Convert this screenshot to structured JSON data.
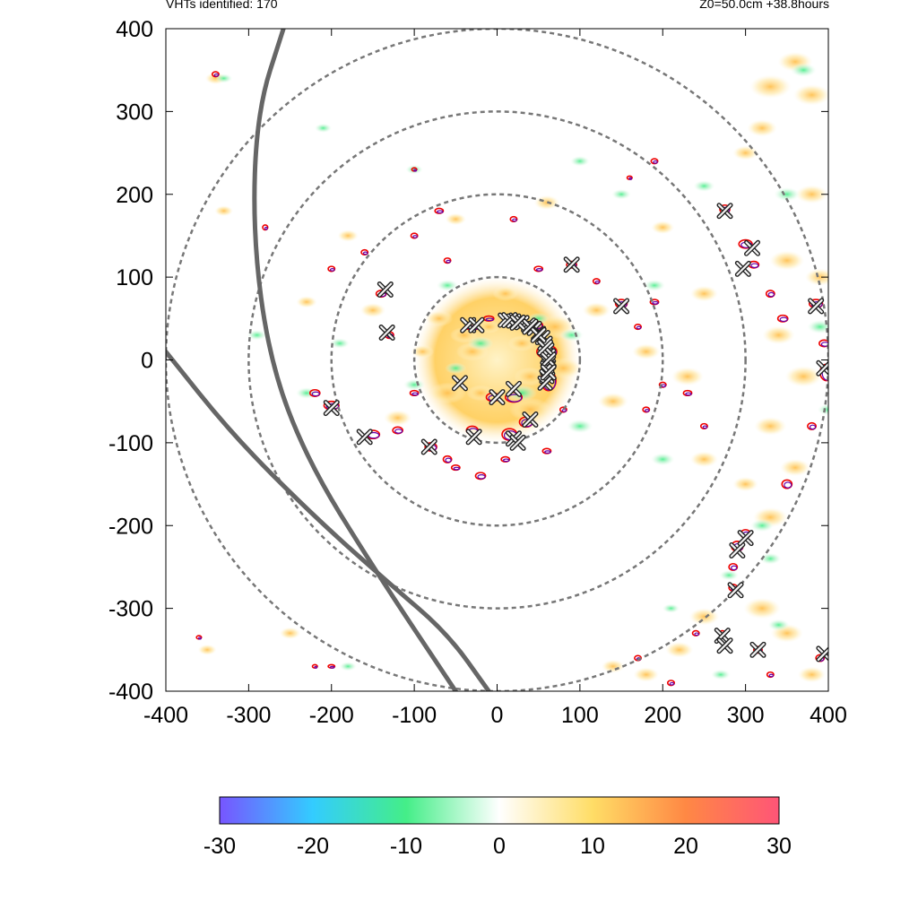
{
  "header": {
    "left_text": "VHTs identified: 170",
    "right_text": "Z0=50.0cm  +38.8hours"
  },
  "colors": {
    "positive_strong": "#ff5577",
    "positive_mid": "#ffcc44",
    "positive_weak": "#fff2c0",
    "negative_weak": "#c8f5d8",
    "negative_mid": "#44ee88",
    "negative_strong": "#7755ff",
    "contour_red": "#ee0000",
    "contour_purple": "#6600aa",
    "ring_color": "#777777",
    "track_color": "#666666"
  },
  "chart_data": {
    "type": "heatmap",
    "title": "",
    "xlabel": "",
    "ylabel": "",
    "xlim": [
      -400,
      400
    ],
    "ylim": [
      -400,
      400
    ],
    "x_ticks": [
      -400,
      -300,
      -200,
      -100,
      0,
      100,
      200,
      300,
      400
    ],
    "y_ticks": [
      400,
      300,
      200,
      100,
      0,
      -100,
      -200,
      -300,
      -400
    ],
    "range_rings": [
      100,
      200,
      300,
      400
    ],
    "colorbar": {
      "min": -30,
      "max": 30,
      "ticks": [
        -30,
        -20,
        -10,
        0,
        10,
        20,
        30
      ],
      "stops": [
        "#7755ff",
        "#33ccff",
        "#44ee88",
        "#ffffff",
        "#ffdd66",
        "#ff8844",
        "#ff5577"
      ]
    },
    "tracks": [
      {
        "points": [
          [
            -258,
            400
          ],
          [
            -290,
            300
          ],
          [
            -295,
            150
          ],
          [
            -275,
            0
          ],
          [
            -230,
            -120
          ],
          [
            -150,
            -250
          ],
          [
            -50,
            -400
          ]
        ]
      },
      {
        "points": [
          [
            -400,
            10
          ],
          [
            -320,
            -90
          ],
          [
            -220,
            -190
          ],
          [
            -130,
            -270
          ],
          [
            -60,
            -330
          ],
          [
            -10,
            -400
          ]
        ]
      }
    ],
    "vht_markers": [
      [
        -135,
        85
      ],
      [
        -133,
        33
      ],
      [
        -200,
        -58
      ],
      [
        -160,
        -93
      ],
      [
        -82,
        -105
      ],
      [
        -28,
        -93
      ],
      [
        -45,
        -28
      ],
      [
        -35,
        42
      ],
      [
        -25,
        42
      ],
      [
        15,
        48
      ],
      [
        25,
        45
      ],
      [
        40,
        40
      ],
      [
        50,
        30
      ],
      [
        58,
        15
      ],
      [
        62,
        0
      ],
      [
        62,
        -15
      ],
      [
        0,
        -45
      ],
      [
        20,
        -35
      ],
      [
        40,
        -72
      ],
      [
        20,
        -95
      ],
      [
        25,
        -100
      ],
      [
        90,
        115
      ],
      [
        150,
        65
      ],
      [
        275,
        180
      ],
      [
        308,
        135
      ],
      [
        297,
        110
      ],
      [
        385,
        65
      ],
      [
        395,
        -10
      ],
      [
        290,
        -230
      ],
      [
        300,
        -215
      ],
      [
        288,
        -278
      ],
      [
        272,
        -333
      ],
      [
        275,
        -345
      ],
      [
        315,
        -350
      ],
      [
        395,
        -355
      ]
    ],
    "core_arc_markers": [
      [
        10,
        48
      ],
      [
        20,
        47
      ],
      [
        30,
        45
      ],
      [
        38,
        42
      ],
      [
        45,
        38
      ],
      [
        50,
        32
      ],
      [
        55,
        27
      ],
      [
        58,
        20
      ],
      [
        60,
        12
      ],
      [
        62,
        5
      ],
      [
        62,
        -3
      ],
      [
        61,
        -10
      ],
      [
        60,
        -20
      ],
      [
        58,
        -28
      ]
    ],
    "core_field": {
      "center": [
        0,
        0
      ],
      "radius": 100,
      "value": 14
    },
    "positive_blobs": [
      [
        -40,
        30,
        12
      ],
      [
        -30,
        10,
        14
      ],
      [
        -10,
        40,
        10
      ],
      [
        30,
        20,
        12
      ],
      [
        40,
        -20,
        14
      ],
      [
        -20,
        -40,
        12
      ],
      [
        70,
        40,
        18
      ],
      [
        80,
        -10,
        16
      ],
      [
        -60,
        -40,
        16
      ],
      [
        40,
        -60,
        18
      ],
      [
        -70,
        50,
        12
      ],
      [
        10,
        80,
        11
      ],
      [
        -90,
        10,
        10
      ],
      [
        120,
        60,
        12
      ],
      [
        140,
        -50,
        13
      ],
      [
        -120,
        -70,
        12
      ],
      [
        -150,
        60,
        11
      ],
      [
        180,
        10,
        12
      ],
      [
        230,
        -20,
        14
      ],
      [
        250,
        80,
        12
      ],
      [
        -180,
        150,
        9
      ],
      [
        200,
        160,
        10
      ],
      [
        60,
        190,
        11
      ],
      [
        -50,
        170,
        9
      ],
      [
        330,
        330,
        18
      ],
      [
        360,
        360,
        15
      ],
      [
        380,
        320,
        16
      ],
      [
        320,
        280,
        13
      ],
      [
        300,
        250,
        11
      ],
      [
        380,
        200,
        14
      ],
      [
        350,
        120,
        15
      ],
      [
        390,
        100,
        13
      ],
      [
        340,
        30,
        14
      ],
      [
        370,
        -20,
        16
      ],
      [
        330,
        -80,
        14
      ],
      [
        360,
        -130,
        13
      ],
      [
        330,
        -190,
        15
      ],
      [
        300,
        -150,
        11
      ],
      [
        250,
        -120,
        12
      ],
      [
        320,
        -300,
        16
      ],
      [
        350,
        -330,
        14
      ],
      [
        380,
        -380,
        12
      ],
      [
        250,
        -310,
        13
      ],
      [
        220,
        -350,
        12
      ],
      [
        180,
        -380,
        11
      ],
      [
        140,
        -370,
        10
      ],
      [
        -230,
        70,
        9
      ],
      [
        -330,
        180,
        8
      ],
      [
        -340,
        340,
        9
      ],
      [
        -350,
        -350,
        8
      ],
      [
        -250,
        -330,
        9
      ]
    ],
    "negative_blobs": [
      [
        -20,
        20,
        12
      ],
      [
        30,
        -40,
        14
      ],
      [
        50,
        50,
        10
      ],
      [
        -50,
        -10,
        10
      ],
      [
        90,
        30,
        11
      ],
      [
        -100,
        -30,
        10
      ],
      [
        100,
        -80,
        12
      ],
      [
        -60,
        90,
        10
      ],
      [
        190,
        90,
        10
      ],
      [
        200,
        -120,
        11
      ],
      [
        -190,
        20,
        9
      ],
      [
        -230,
        -40,
        10
      ],
      [
        -290,
        30,
        9
      ],
      [
        370,
        350,
        12
      ],
      [
        350,
        200,
        12
      ],
      [
        390,
        40,
        12
      ],
      [
        400,
        -60,
        10
      ],
      [
        320,
        -200,
        11
      ],
      [
        330,
        -240,
        10
      ],
      [
        280,
        -260,
        9
      ],
      [
        340,
        -320,
        10
      ],
      [
        270,
        -380,
        9
      ],
      [
        210,
        -300,
        8
      ],
      [
        -330,
        340,
        8
      ],
      [
        -180,
        -370,
        8
      ],
      [
        250,
        210,
        10
      ],
      [
        150,
        200,
        9
      ],
      [
        -210,
        280,
        8
      ],
      [
        100,
        240,
        9
      ],
      [
        -100,
        230,
        8
      ]
    ],
    "contour_loops": [
      [
        -30,
        40,
        8,
        4
      ],
      [
        -10,
        50,
        6,
        3
      ],
      [
        45,
        42,
        10,
        5
      ],
      [
        60,
        10,
        12,
        8
      ],
      [
        62,
        -25,
        9,
        12
      ],
      [
        20,
        -45,
        10,
        6
      ],
      [
        -5,
        -45,
        8,
        5
      ],
      [
        35,
        -75,
        8,
        6
      ],
      [
        15,
        -90,
        9,
        7
      ],
      [
        -30,
        -85,
        7,
        5
      ],
      [
        -80,
        -105,
        7,
        5
      ],
      [
        -120,
        -85,
        6,
        4
      ],
      [
        -150,
        -90,
        8,
        5
      ],
      [
        -200,
        -55,
        9,
        5
      ],
      [
        -220,
        -40,
        6,
        4
      ],
      [
        -140,
        80,
        6,
        4
      ],
      [
        -130,
        30,
        5,
        4
      ],
      [
        -100,
        -40,
        5,
        3
      ],
      [
        -60,
        -120,
        5,
        4
      ],
      [
        -20,
        -140,
        6,
        4
      ],
      [
        -50,
        -130,
        5,
        3
      ],
      [
        10,
        -120,
        5,
        3
      ],
      [
        60,
        -110,
        5,
        3
      ],
      [
        80,
        -60,
        4,
        3
      ],
      [
        -60,
        120,
        4,
        3
      ],
      [
        -100,
        150,
        4,
        3
      ],
      [
        -70,
        180,
        5,
        3
      ],
      [
        -160,
        130,
        4,
        3
      ],
      [
        -200,
        110,
        4,
        3
      ],
      [
        -280,
        160,
        3,
        3
      ],
      [
        90,
        115,
        6,
        4
      ],
      [
        50,
        110,
        5,
        3
      ],
      [
        120,
        95,
        4,
        3
      ],
      [
        150,
        68,
        7,
        5
      ],
      [
        170,
        40,
        4,
        3
      ],
      [
        190,
        70,
        5,
        3
      ],
      [
        200,
        -30,
        4,
        3
      ],
      [
        180,
        -60,
        4,
        3
      ],
      [
        230,
        -40,
        5,
        3
      ],
      [
        250,
        -80,
        4,
        3
      ],
      [
        275,
        182,
        6,
        5
      ],
      [
        300,
        140,
        8,
        5
      ],
      [
        310,
        115,
        6,
        4
      ],
      [
        330,
        80,
        5,
        4
      ],
      [
        345,
        50,
        6,
        4
      ],
      [
        385,
        68,
        8,
        5
      ],
      [
        395,
        20,
        6,
        4
      ],
      [
        398,
        -15,
        8,
        10
      ],
      [
        380,
        -80,
        5,
        4
      ],
      [
        350,
        -150,
        6,
        5
      ],
      [
        290,
        -225,
        7,
        6
      ],
      [
        300,
        -210,
        6,
        5
      ],
      [
        285,
        -250,
        5,
        4
      ],
      [
        285,
        -275,
        5,
        4
      ],
      [
        272,
        -330,
        4,
        3
      ],
      [
        315,
        -350,
        5,
        4
      ],
      [
        330,
        -380,
        4,
        3
      ],
      [
        390,
        -360,
        5,
        4
      ],
      [
        240,
        -330,
        4,
        3
      ],
      [
        210,
        -390,
        4,
        3
      ],
      [
        170,
        -360,
        4,
        3
      ],
      [
        -340,
        345,
        4,
        3
      ],
      [
        -360,
        -335,
        3,
        2
      ],
      [
        -200,
        -370,
        4,
        2
      ],
      [
        -220,
        -370,
        3,
        2
      ],
      [
        -400,
        7,
        3,
        3
      ],
      [
        20,
        170,
        4,
        3
      ],
      [
        -100,
        230,
        3,
        2
      ],
      [
        160,
        220,
        3,
        2
      ],
      [
        190,
        240,
        4,
        3
      ]
    ]
  }
}
